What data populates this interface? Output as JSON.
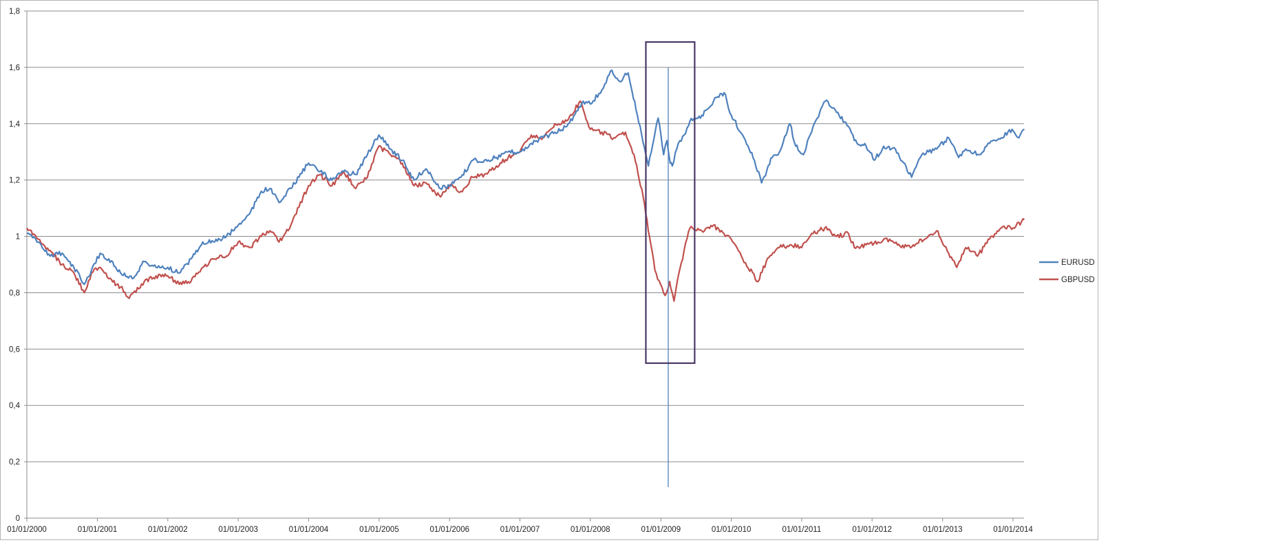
{
  "chart_data": {
    "type": "line",
    "title": "",
    "xlabel": "",
    "ylabel": "",
    "ylim": [
      0,
      1.8
    ],
    "xlim": [
      "2000-01-01",
      "2014-03-01"
    ],
    "y_ticks": [
      "0",
      "0,2",
      "0,4",
      "0,6",
      "0,8",
      "1",
      "1,2",
      "1,4",
      "1,6",
      "1,8"
    ],
    "y_tick_values": [
      0,
      0.2,
      0.4,
      0.6,
      0.8,
      1.0,
      1.2,
      1.4,
      1.6,
      1.8
    ],
    "x_ticks": [
      "01/01/2000",
      "01/01/2001",
      "01/01/2002",
      "01/01/2003",
      "01/01/2004",
      "01/01/2005",
      "01/01/2006",
      "01/01/2007",
      "01/01/2008",
      "01/01/2009",
      "01/01/2010",
      "01/01/2011",
      "01/01/2012",
      "01/01/2013",
      "01/01/2014"
    ],
    "x_tick_dates": [
      "2000-01-01",
      "2001-01-01",
      "2002-01-01",
      "2003-01-01",
      "2004-01-01",
      "2005-01-01",
      "2006-01-01",
      "2007-01-01",
      "2008-01-01",
      "2009-01-01",
      "2010-01-01",
      "2011-01-01",
      "2012-01-01",
      "2013-01-01",
      "2014-01-01"
    ],
    "grid": true,
    "legend_position": "right",
    "series": [
      {
        "name": "EURUSD",
        "color": "#4f81bd",
        "x": [
          "2000-01-01",
          "2000-03-01",
          "2000-05-01",
          "2000-07-01",
          "2000-09-01",
          "2000-10-25",
          "2000-12-01",
          "2001-01-15",
          "2001-03-01",
          "2001-05-01",
          "2001-07-01",
          "2001-09-01",
          "2001-11-01",
          "2002-01-01",
          "2002-03-01",
          "2002-05-01",
          "2002-07-01",
          "2002-09-01",
          "2002-11-01",
          "2003-01-01",
          "2003-03-01",
          "2003-05-01",
          "2003-06-15",
          "2003-08-01",
          "2003-10-01",
          "2004-01-01",
          "2004-03-01",
          "2004-05-01",
          "2004-07-01",
          "2004-09-01",
          "2004-11-01",
          "2004-12-30",
          "2005-03-01",
          "2005-05-01",
          "2005-07-01",
          "2005-09-01",
          "2005-11-15",
          "2006-01-01",
          "2006-03-01",
          "2006-05-01",
          "2006-07-01",
          "2006-09-01",
          "2006-11-01",
          "2007-01-01",
          "2007-03-01",
          "2007-05-01",
          "2007-07-01",
          "2007-09-01",
          "2007-11-25",
          "2008-01-01",
          "2008-03-01",
          "2008-04-22",
          "2008-06-01",
          "2008-07-15",
          "2008-09-01",
          "2008-10-28",
          "2008-12-18",
          "2009-01-15",
          "2009-02-01",
          "2009-02-18",
          "2009-03-01",
          "2009-04-01",
          "2009-05-01",
          "2009-06-01",
          "2009-08-01",
          "2009-10-01",
          "2009-11-25",
          "2010-01-01",
          "2010-03-01",
          "2010-05-01",
          "2010-06-07",
          "2010-08-01",
          "2010-09-01",
          "2010-11-01",
          "2010-12-01",
          "2011-01-10",
          "2011-03-01",
          "2011-05-03",
          "2011-07-01",
          "2011-09-01",
          "2011-10-01",
          "2011-12-01",
          "2012-01-13",
          "2012-03-01",
          "2012-05-01",
          "2012-07-24",
          "2012-09-15",
          "2012-10-20",
          "2012-12-01",
          "2013-02-01",
          "2013-03-25",
          "2013-05-01",
          "2013-07-10",
          "2013-09-01",
          "2013-11-01",
          "2013-12-27",
          "2014-01-31",
          "2014-03-01"
        ],
        "y": [
          1.01,
          0.98,
          0.93,
          0.94,
          0.89,
          0.83,
          0.88,
          0.94,
          0.92,
          0.87,
          0.85,
          0.91,
          0.89,
          0.89,
          0.87,
          0.92,
          0.98,
          0.98,
          1.0,
          1.04,
          1.08,
          1.16,
          1.17,
          1.12,
          1.17,
          1.26,
          1.23,
          1.2,
          1.23,
          1.22,
          1.29,
          1.36,
          1.31,
          1.27,
          1.2,
          1.24,
          1.17,
          1.18,
          1.21,
          1.27,
          1.27,
          1.28,
          1.3,
          1.3,
          1.33,
          1.35,
          1.37,
          1.39,
          1.48,
          1.47,
          1.52,
          1.59,
          1.55,
          1.58,
          1.43,
          1.25,
          1.42,
          1.29,
          1.34,
          1.26,
          1.25,
          1.33,
          1.36,
          1.41,
          1.43,
          1.48,
          1.51,
          1.43,
          1.36,
          1.27,
          1.19,
          1.28,
          1.29,
          1.4,
          1.32,
          1.29,
          1.39,
          1.48,
          1.44,
          1.39,
          1.34,
          1.32,
          1.27,
          1.32,
          1.31,
          1.21,
          1.29,
          1.3,
          1.31,
          1.35,
          1.28,
          1.31,
          1.29,
          1.33,
          1.35,
          1.38,
          1.35,
          1.38
        ]
      },
      {
        "name": "GBPUSD",
        "color": "#c0504d",
        "x": [
          "2000-01-01",
          "2000-03-01",
          "2000-05-01",
          "2000-07-01",
          "2000-09-01",
          "2000-10-25",
          "2000-12-01",
          "2001-01-15",
          "2001-03-01",
          "2001-05-01",
          "2001-06-15",
          "2001-09-01",
          "2001-11-01",
          "2002-01-01",
          "2002-03-01",
          "2002-05-01",
          "2002-07-01",
          "2002-09-01",
          "2002-11-01",
          "2003-01-01",
          "2003-03-01",
          "2003-05-01",
          "2003-06-15",
          "2003-08-01",
          "2003-10-01",
          "2004-01-01",
          "2004-03-01",
          "2004-05-01",
          "2004-07-01",
          "2004-09-01",
          "2004-11-01",
          "2004-12-30",
          "2005-03-01",
          "2005-05-01",
          "2005-07-01",
          "2005-09-01",
          "2005-11-15",
          "2006-01-01",
          "2006-03-01",
          "2006-05-01",
          "2006-07-01",
          "2006-09-01",
          "2006-11-01",
          "2007-01-01",
          "2007-03-01",
          "2007-05-01",
          "2007-07-01",
          "2007-09-01",
          "2007-11-10",
          "2008-01-01",
          "2008-03-01",
          "2008-05-01",
          "2008-07-01",
          "2008-08-15",
          "2008-10-01",
          "2008-11-10",
          "2008-12-01",
          "2008-12-30",
          "2009-01-23",
          "2009-02-15",
          "2009-03-10",
          "2009-04-01",
          "2009-05-01",
          "2009-06-01",
          "2009-08-01",
          "2009-10-01",
          "2009-12-01",
          "2010-01-01",
          "2010-03-01",
          "2010-05-20",
          "2010-07-01",
          "2010-09-01",
          "2010-11-01",
          "2011-01-01",
          "2011-03-01",
          "2011-05-01",
          "2011-07-01",
          "2011-09-01",
          "2011-10-01",
          "2011-12-01",
          "2012-02-01",
          "2012-04-01",
          "2012-06-01",
          "2012-08-01",
          "2012-10-01",
          "2012-12-01",
          "2013-02-01",
          "2013-03-15",
          "2013-05-01",
          "2013-07-01",
          "2013-09-01",
          "2013-11-01",
          "2014-01-01",
          "2014-03-01"
        ],
        "y": [
          1.03,
          0.99,
          0.95,
          0.9,
          0.87,
          0.8,
          0.87,
          0.89,
          0.85,
          0.82,
          0.78,
          0.84,
          0.86,
          0.86,
          0.83,
          0.84,
          0.89,
          0.92,
          0.93,
          0.98,
          0.96,
          1.0,
          1.02,
          0.98,
          1.04,
          1.18,
          1.22,
          1.18,
          1.23,
          1.17,
          1.21,
          1.32,
          1.29,
          1.26,
          1.18,
          1.19,
          1.14,
          1.18,
          1.16,
          1.21,
          1.22,
          1.25,
          1.28,
          1.3,
          1.36,
          1.35,
          1.4,
          1.41,
          1.48,
          1.38,
          1.37,
          1.35,
          1.37,
          1.29,
          1.14,
          0.97,
          0.88,
          0.83,
          0.79,
          0.84,
          0.77,
          0.86,
          0.95,
          1.03,
          1.02,
          1.04,
          1.0,
          0.99,
          0.92,
          0.84,
          0.91,
          0.96,
          0.97,
          0.96,
          1.01,
          1.03,
          1.0,
          1.01,
          0.96,
          0.97,
          0.98,
          0.99,
          0.96,
          0.97,
          0.99,
          1.02,
          0.94,
          0.89,
          0.96,
          0.93,
          0.99,
          1.03,
          1.03,
          1.06
        ]
      }
    ],
    "annotations": {
      "highlight_rect": {
        "x_start": "2008-10-15",
        "x_end": "2009-06-25",
        "y_low": 0.55,
        "y_high": 1.69,
        "color": "#4a3766"
      },
      "spike": {
        "date": "2009-02-08",
        "y_top": 1.6,
        "y_bottom": 0.11,
        "color": "#4f81bd"
      }
    }
  }
}
